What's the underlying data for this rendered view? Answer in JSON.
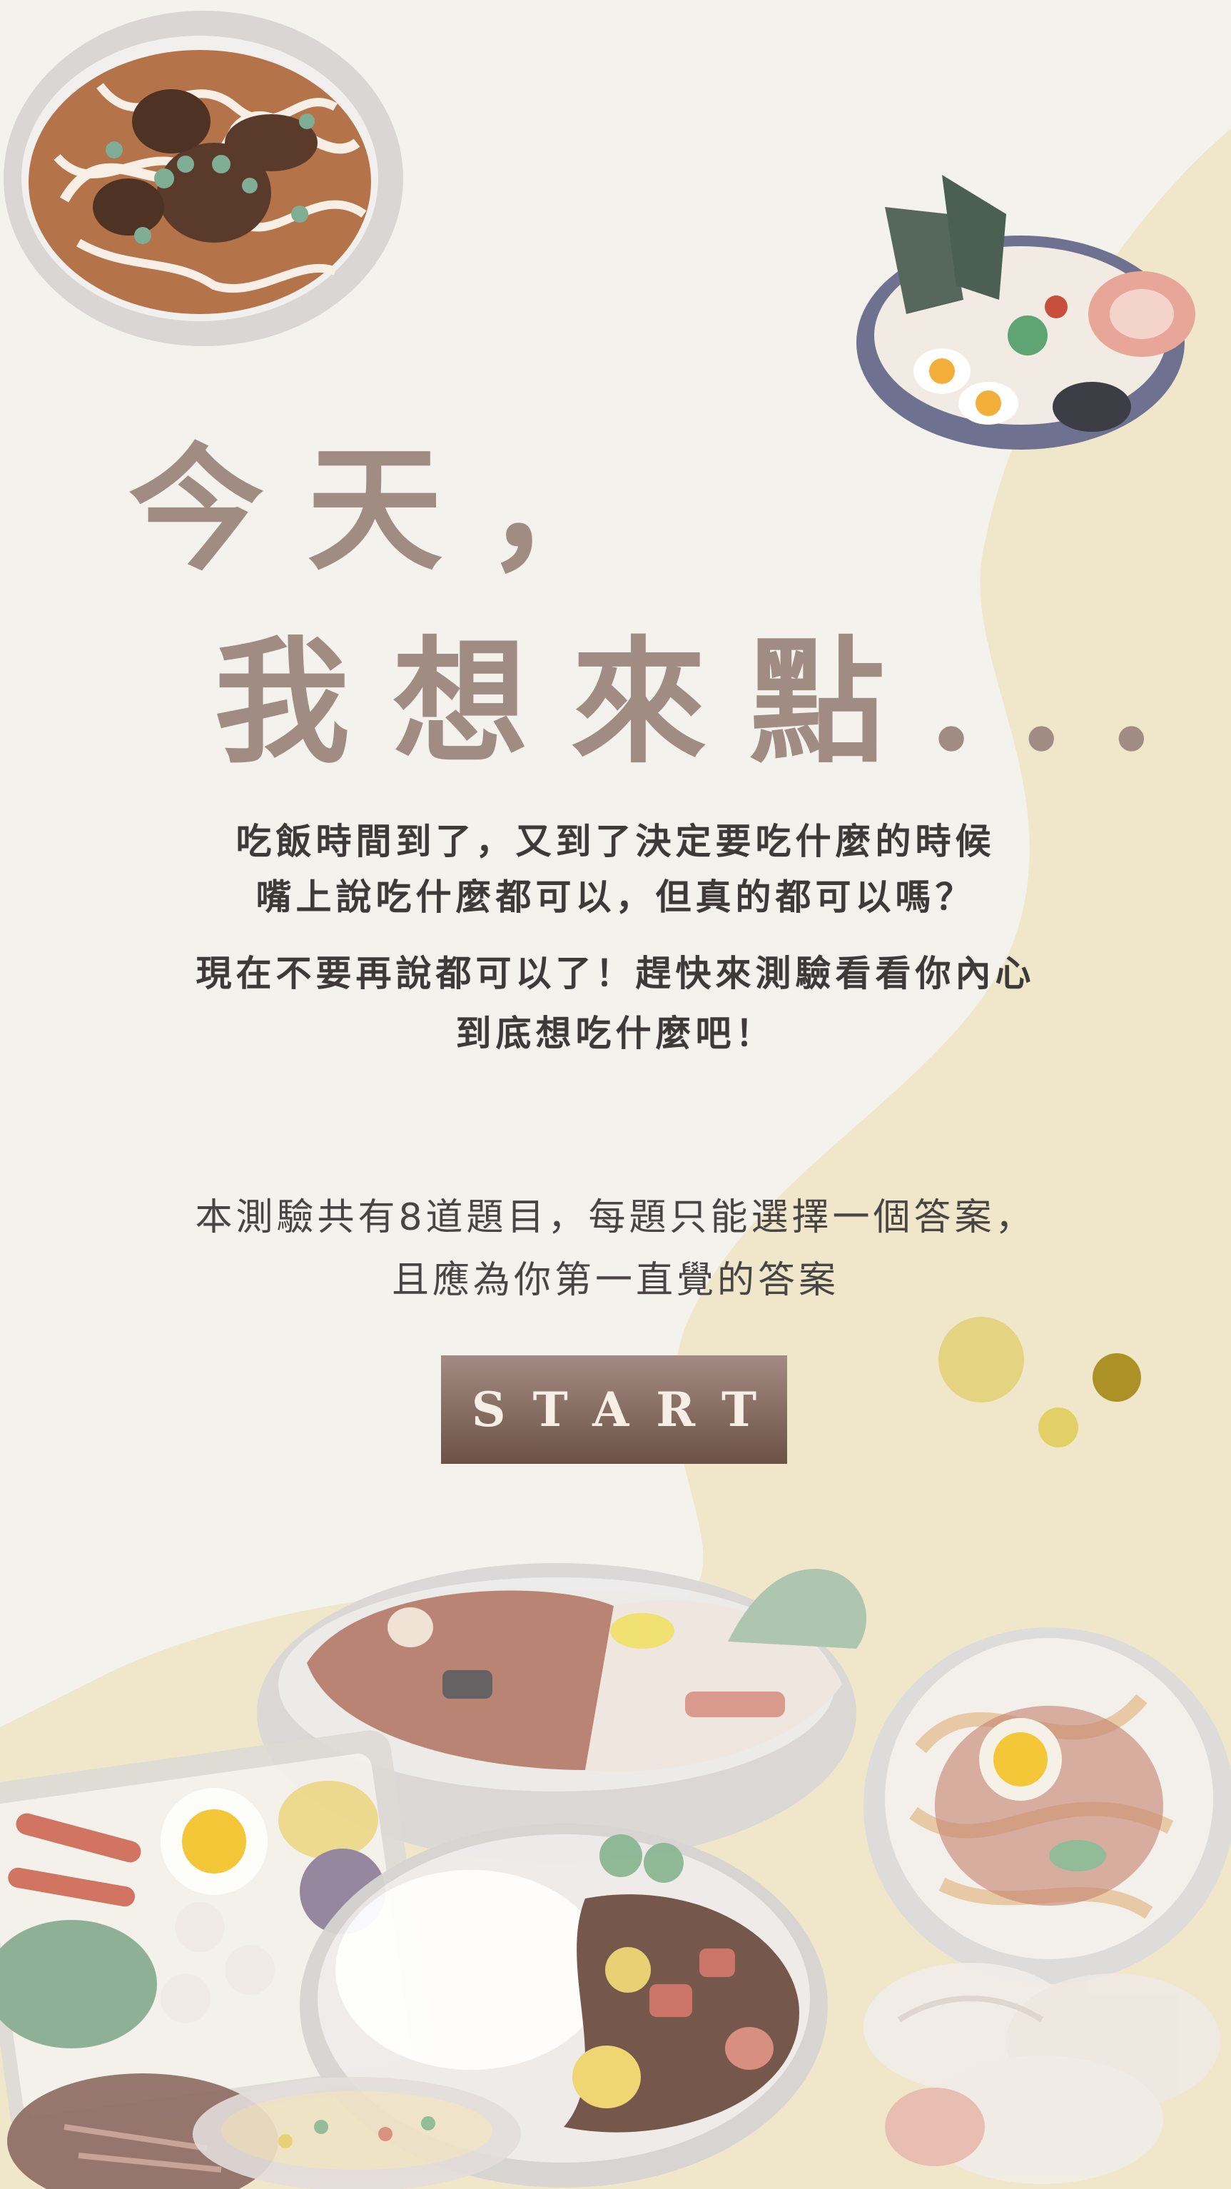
{
  "title": {
    "line1": "今天，",
    "line2": "我想來點..."
  },
  "intro": {
    "line1": "吃飯時間到了，又到了決定要吃什麼的時候",
    "line2": "嘴上說吃什麼都可以，但真的都可以嗎？",
    "line3": "現在不要再說都可以了！趕快來測驗看看你內心",
    "line4": "到底想吃什麼吧！"
  },
  "quiz_info": {
    "line1": "本測驗共有8道題目，每題只能選擇一個答案，",
    "line2": "且應為你第一直覺的答案"
  },
  "start_button": {
    "label": "START"
  },
  "colors": {
    "background": "#f4f2ec",
    "wave": "#efe6c8",
    "title": "#a08c82",
    "button_top": "#a38b83",
    "button_bottom": "#6b5245",
    "dot_light": "#e4d482",
    "dot_dark": "#ac9127"
  },
  "illustrations": [
    "beef-noodle-soup-icon",
    "ramen-icon",
    "hot-pot-icon",
    "spaghetti-icon",
    "bento-box-icon",
    "curry-rice-icon",
    "dumplings-icon",
    "steak-icon",
    "fried-rice-icon"
  ]
}
